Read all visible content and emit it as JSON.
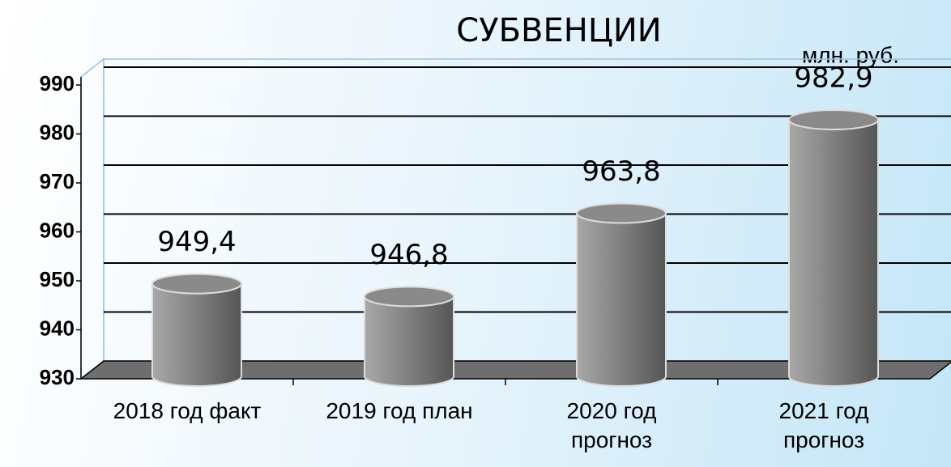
{
  "chart_data": {
    "type": "bar",
    "title": "СУБВЕНЦИИ",
    "unit_label": "млн. руб.",
    "categories": [
      "2018 год факт",
      "2019 год план",
      "2020 год прогноз",
      "2021 год прогноз"
    ],
    "values": [
      949.4,
      946.8,
      963.8,
      982.9
    ],
    "value_labels": [
      "949,4",
      "946,8",
      "963,8",
      "982,9"
    ],
    "color": "#7a7a7a",
    "ylim": [
      930,
      990
    ],
    "yticks": [
      930,
      940,
      950,
      960,
      970,
      980,
      990
    ],
    "grid": true
  }
}
